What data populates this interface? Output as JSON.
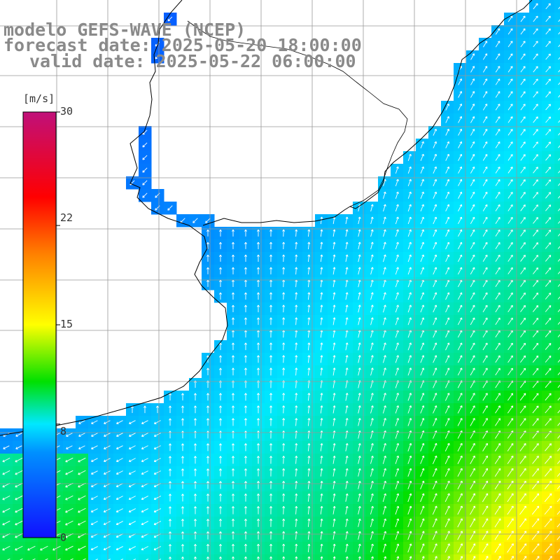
{
  "title": {
    "model": "modelo GEFS-WAVE (NCEP)",
    "forecast": "forecast date: 2025-05-20 18:00:00",
    "valid": "valid date: 2025-05-22 06:00:00"
  },
  "colorbar": {
    "unit": "[m/s]",
    "min": 0,
    "max": 30,
    "ticks": [
      {
        "label": "30",
        "value": 30
      },
      {
        "label": "22",
        "value": 22
      },
      {
        "label": "15",
        "value": 15
      },
      {
        "label": "8",
        "value": 8
      },
      {
        "label": "0",
        "value": 0
      }
    ],
    "stops": [
      {
        "v": 0,
        "c": "#1010ff"
      },
      {
        "v": 6,
        "c": "#0090ff"
      },
      {
        "v": 8,
        "c": "#00e8ff"
      },
      {
        "v": 11,
        "c": "#00e000"
      },
      {
        "v": 15,
        "c": "#ffff00"
      },
      {
        "v": 20,
        "c": "#ff8000"
      },
      {
        "v": 24,
        "c": "#ff0000"
      },
      {
        "v": 30,
        "c": "#c0107a"
      }
    ]
  },
  "colors": {
    "land": "#ffffff",
    "grid": "#999999",
    "coast": "#000000",
    "arrow": "#ffffff",
    "title": "#8a8a8a"
  }
}
